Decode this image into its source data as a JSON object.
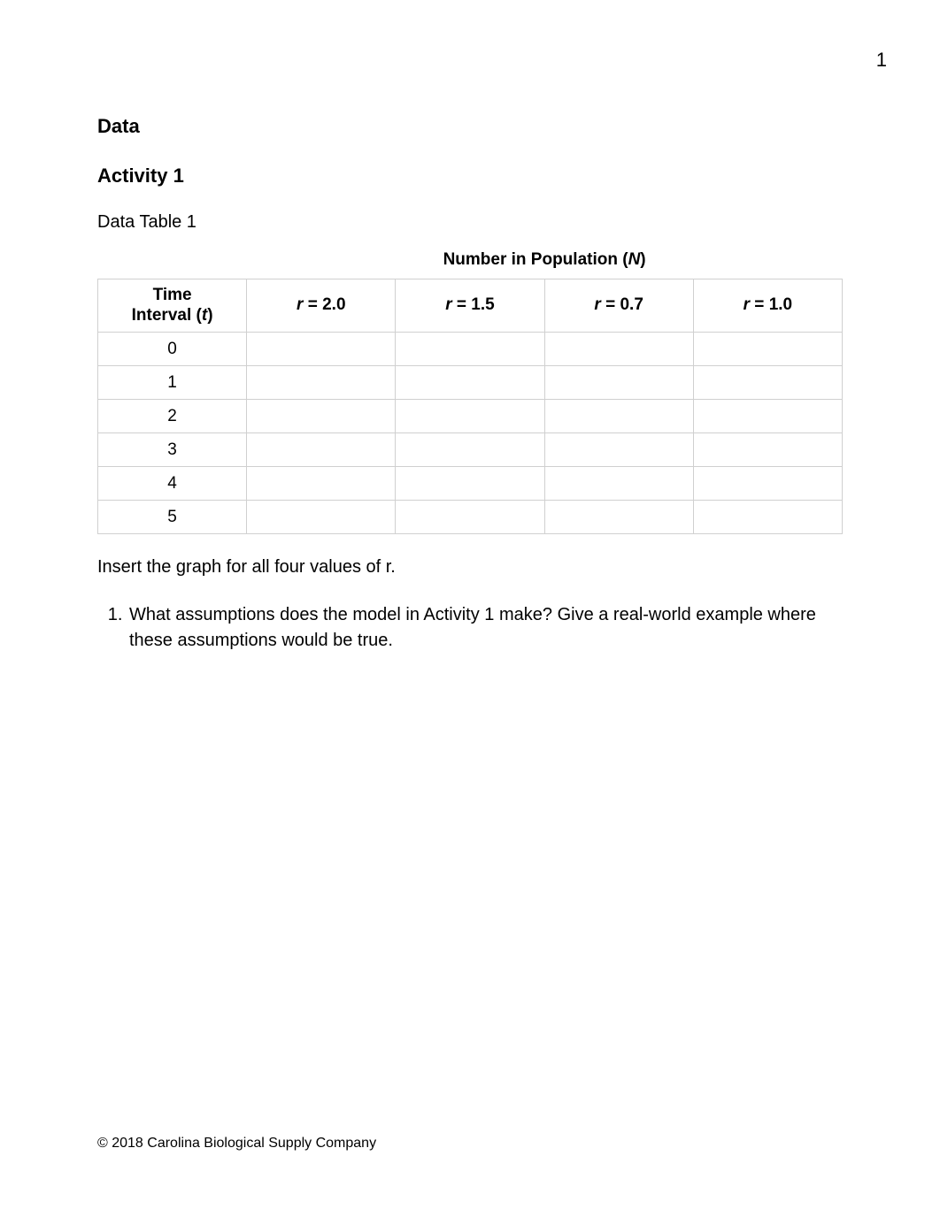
{
  "page_number": "1",
  "headings": {
    "data": "Data",
    "activity": "Activity 1",
    "table_caption": "Data Table 1"
  },
  "table": {
    "super_header_prefix": "Number in Population (",
    "super_header_var": "N",
    "super_header_suffix": ")",
    "time_header_line1": "Time",
    "time_header_line2_prefix": "Interval (",
    "time_header_line2_var": "t",
    "time_header_line2_suffix": ")",
    "r_var": "r",
    "r_values": [
      "2.0",
      "1.5",
      "0.7",
      "1.0"
    ],
    "time_intervals": [
      "0",
      "1",
      "2",
      "3",
      "4",
      "5"
    ]
  },
  "instruction": "Insert the graph for all four values of r.",
  "question": {
    "number": "1",
    "text": "What assumptions does the model in Activity 1 make? Give a real-world example where these assumptions would be true."
  },
  "footer": "© 2018 Carolina Biological Supply Company"
}
